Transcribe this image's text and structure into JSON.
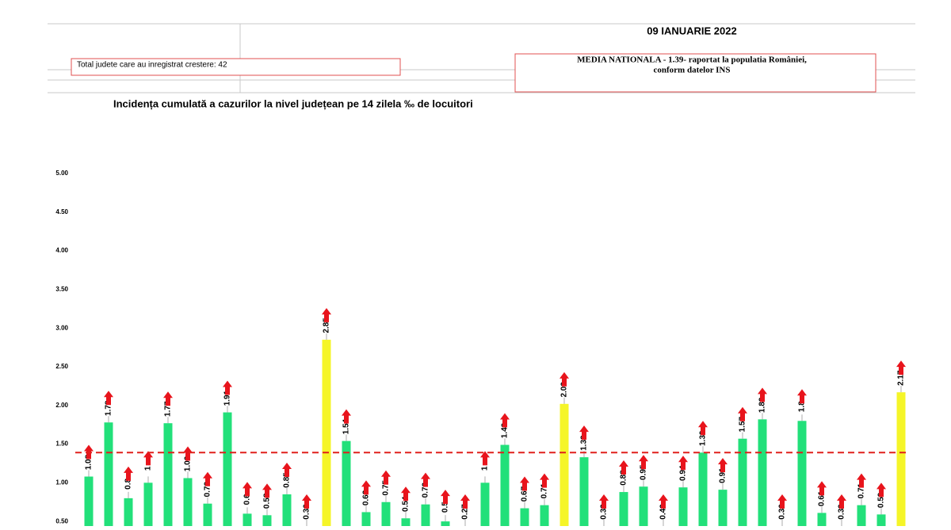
{
  "chart_data": {
    "type": "bar",
    "date": "09 IANUARIE 2022",
    "counter_note": "Total judete care au inregistrat crestere: 42",
    "national_note_line1": "MEDIA NATIONALA - 1.39- raportat la populatia României,",
    "national_note_line2": "conform datelor INS",
    "title": "Incidența cumulată a cazurilor la nivel județean pe 14 zilela ‰ de locuitori",
    "values": [
      1.08,
      1.78,
      0.8,
      1,
      1.77,
      1.06,
      0.73,
      1.91,
      0.6,
      0.58,
      0.85,
      0.36,
      2.85,
      1.54,
      0.62,
      0.75,
      0.54,
      0.72,
      0.5,
      0.27,
      1,
      1.49,
      0.67,
      0.71,
      2.02,
      1.33,
      0.32,
      0.88,
      0.95,
      0.42,
      0.94,
      1.39,
      0.91,
      1.57,
      1.82,
      0.36,
      1.8,
      0.61,
      0.39,
      0.71,
      0.59,
      2.17
    ],
    "colors": [
      "#22e07a",
      "#22e07a",
      "#22e07a",
      "#22e07a",
      "#22e07a",
      "#22e07a",
      "#22e07a",
      "#22e07a",
      "#22e07a",
      "#22e07a",
      "#22e07a",
      "#22e07a",
      "#f5f528",
      "#22e07a",
      "#22e07a",
      "#22e07a",
      "#22e07a",
      "#22e07a",
      "#22e07a",
      "#22e07a",
      "#22e07a",
      "#22e07a",
      "#22e07a",
      "#22e07a",
      "#f5f528",
      "#22e07a",
      "#22e07a",
      "#22e07a",
      "#22e07a",
      "#22e07a",
      "#22e07a",
      "#22e07a",
      "#22e07a",
      "#22e07a",
      "#22e07a",
      "#22e07a",
      "#22e07a",
      "#22e07a",
      "#22e07a",
      "#22e07a",
      "#22e07a",
      "#f5f528"
    ],
    "reference_line": 1.39,
    "reference_color": "#e0201c",
    "ylim": [
      0.44,
      5
    ],
    "yticks": [
      {
        "value": 0.5,
        "label": "0.50"
      },
      {
        "value": 1,
        "label": "1.00"
      },
      {
        "value": 1.5,
        "label": "1.50"
      },
      {
        "value": 2,
        "label": "2.00"
      },
      {
        "value": 2.5,
        "label": "2.50"
      },
      {
        "value": 3,
        "label": "3.00"
      },
      {
        "value": 3.5,
        "label": "3.50"
      },
      {
        "value": 4,
        "label": "4.00"
      },
      {
        "value": 4.5,
        "label": "4.50"
      },
      {
        "value": 5,
        "label": "5.00"
      }
    ]
  }
}
